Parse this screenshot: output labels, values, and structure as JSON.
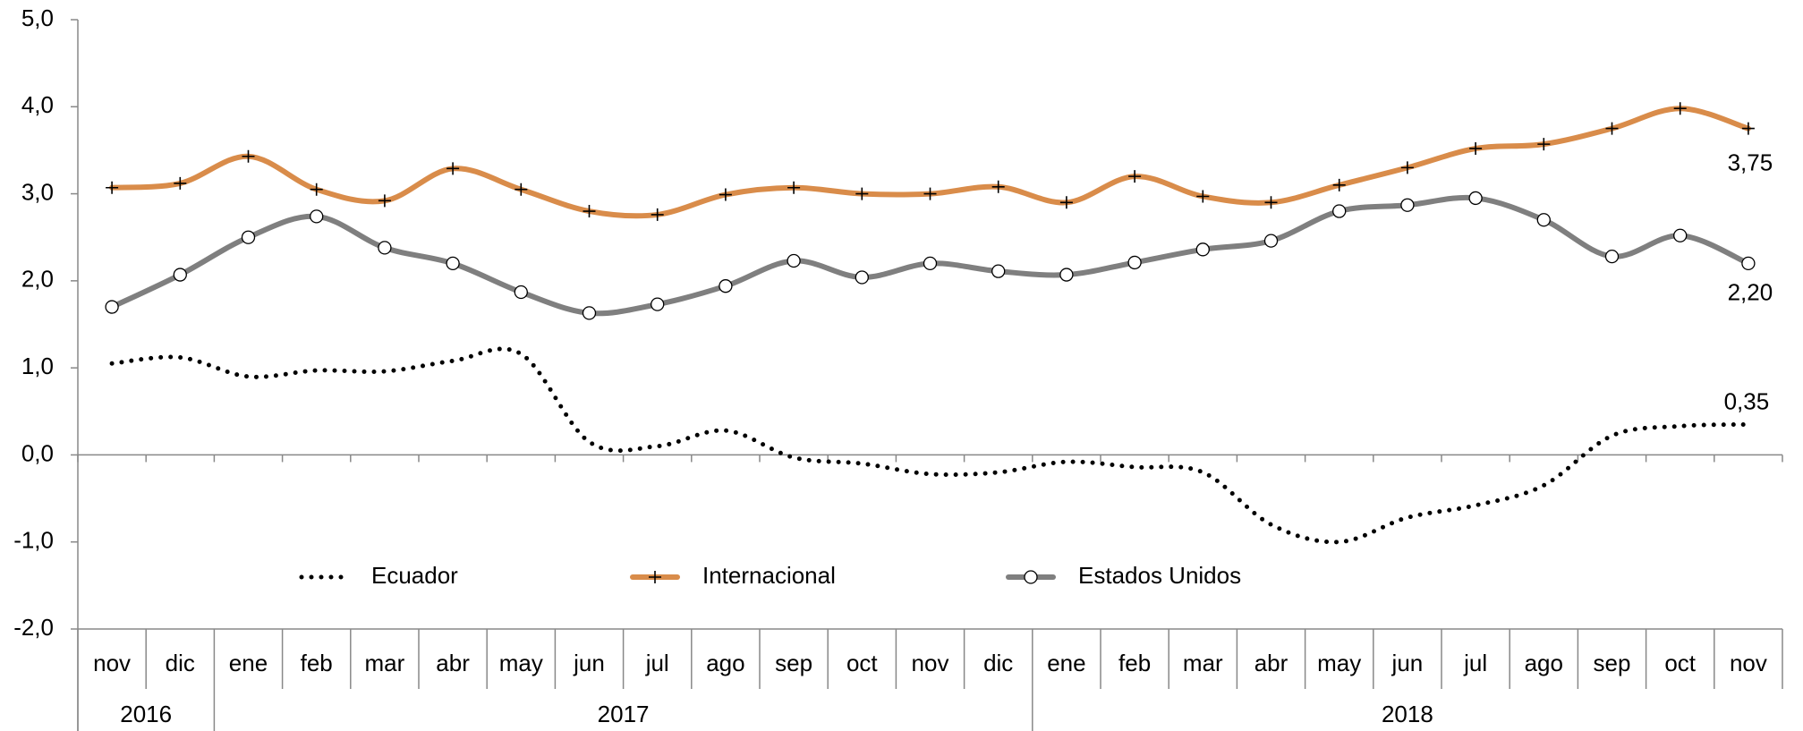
{
  "chart_data": {
    "type": "line",
    "categories": [
      "nov",
      "dic",
      "ene",
      "feb",
      "mar",
      "abr",
      "may",
      "jun",
      "jul",
      "ago",
      "sep",
      "oct",
      "nov",
      "dic",
      "ene",
      "feb",
      "mar",
      "abr",
      "may",
      "jun",
      "jul",
      "ago",
      "sep",
      "oct",
      "nov"
    ],
    "years": [
      "2016",
      "2016",
      "2017",
      "2017",
      "2017",
      "2017",
      "2017",
      "2017",
      "2017",
      "2017",
      "2017",
      "2017",
      "2017",
      "2017",
      "2018",
      "2018",
      "2018",
      "2018",
      "2018",
      "2018",
      "2018",
      "2018",
      "2018",
      "2018",
      "2018"
    ],
    "series": [
      {
        "name": "Ecuador",
        "color": "#000000",
        "style": "dotted",
        "values": [
          1.05,
          1.12,
          0.9,
          0.97,
          0.96,
          1.08,
          1.16,
          0.15,
          0.1,
          0.28,
          -0.03,
          -0.1,
          -0.22,
          -0.2,
          -0.08,
          -0.14,
          -0.2,
          -0.8,
          -1.0,
          -0.72,
          -0.58,
          -0.35,
          0.22,
          0.33,
          0.35
        ],
        "value_labels": [
          null,
          null,
          null,
          null,
          null,
          null,
          null,
          null,
          null,
          null,
          null,
          null,
          null,
          null,
          null,
          null,
          null,
          null,
          null,
          null,
          null,
          null,
          null,
          null,
          "0,35"
        ]
      },
      {
        "name": "Internacional",
        "color": "#d98c4a",
        "marker": "plus",
        "values": [
          3.07,
          3.12,
          3.43,
          3.05,
          2.92,
          3.29,
          3.05,
          2.8,
          2.76,
          2.99,
          3.07,
          3.0,
          3.0,
          3.08,
          2.9,
          3.2,
          2.97,
          2.9,
          3.1,
          3.3,
          3.52,
          3.57,
          3.75,
          3.98,
          3.75
        ],
        "value_labels": [
          null,
          null,
          null,
          null,
          null,
          null,
          null,
          null,
          null,
          null,
          null,
          null,
          null,
          null,
          null,
          null,
          null,
          null,
          null,
          null,
          null,
          null,
          null,
          null,
          "3,75"
        ]
      },
      {
        "name": "Estados Unidos",
        "color": "#7f7f7f",
        "marker": "circle",
        "values": [
          1.7,
          2.07,
          2.5,
          2.74,
          2.38,
          2.2,
          1.87,
          1.63,
          1.73,
          1.94,
          2.23,
          2.04,
          2.2,
          2.11,
          2.07,
          2.21,
          2.36,
          2.46,
          2.8,
          2.87,
          2.95,
          2.7,
          2.28,
          2.52,
          2.2
        ],
        "value_labels": [
          null,
          null,
          null,
          null,
          null,
          null,
          null,
          null,
          null,
          null,
          null,
          null,
          null,
          null,
          null,
          null,
          null,
          null,
          null,
          null,
          null,
          null,
          null,
          null,
          "2,20"
        ]
      }
    ],
    "ylim": [
      -2,
      5
    ],
    "yticks": [
      {
        "value": -2,
        "label": "-2,0"
      },
      {
        "value": -1,
        "label": "-1,0"
      },
      {
        "value": 0,
        "label": "0,0"
      },
      {
        "value": 1,
        "label": "1,0"
      },
      {
        "value": 2,
        "label": "2,0"
      },
      {
        "value": 3,
        "label": "3,0"
      },
      {
        "value": 4,
        "label": "4,0"
      },
      {
        "value": 5,
        "label": "5,0"
      }
    ],
    "grid": false,
    "legend": "bottom-inside"
  }
}
